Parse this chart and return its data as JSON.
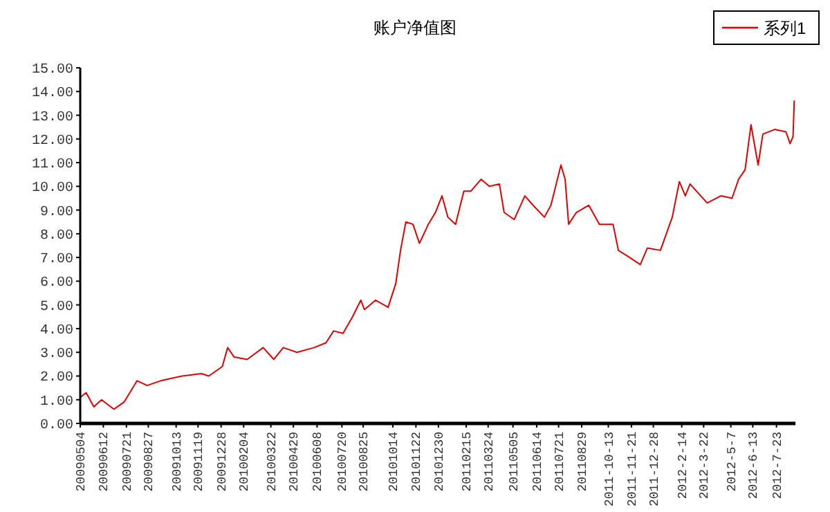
{
  "chart_data": {
    "type": "line",
    "title": "账户净值图",
    "legend": "top right",
    "grid": false,
    "marker": "none",
    "line_style": "solid",
    "xlim": [
      "2009-05-04",
      "2012-08-24"
    ],
    "xticks": [
      {
        "value": "2009-05-04",
        "label": "20090504"
      },
      {
        "value": "2009-06-12",
        "label": "20090612"
      },
      {
        "value": "2009-07-21",
        "label": "20090721"
      },
      {
        "value": "2009-08-27",
        "label": "20090827"
      },
      {
        "value": "2009-10-13",
        "label": "20091013"
      },
      {
        "value": "2009-11-19",
        "label": "20091119"
      },
      {
        "value": "2009-12-28",
        "label": "20091228"
      },
      {
        "value": "2010-02-04",
        "label": "20100204"
      },
      {
        "value": "2010-03-22",
        "label": "20100322"
      },
      {
        "value": "2010-04-29",
        "label": "20100429"
      },
      {
        "value": "2010-06-08",
        "label": "20100608"
      },
      {
        "value": "2010-07-20",
        "label": "20100720"
      },
      {
        "value": "2010-08-25",
        "label": "20100825"
      },
      {
        "value": "2010-10-14",
        "label": "20101014"
      },
      {
        "value": "2010-11-22",
        "label": "20101122"
      },
      {
        "value": "2010-12-30",
        "label": "20101230"
      },
      {
        "value": "2011-02-15",
        "label": "20110215"
      },
      {
        "value": "2011-03-24",
        "label": "20110324"
      },
      {
        "value": "2011-05-05",
        "label": "20110505"
      },
      {
        "value": "2011-06-14",
        "label": "20110614"
      },
      {
        "value": "2011-07-21",
        "label": "20110721"
      },
      {
        "value": "2011-08-29",
        "label": "20110829"
      },
      {
        "value": "2011-10-13",
        "label": "2011-10-13"
      },
      {
        "value": "2011-11-21",
        "label": "2011-11-21"
      },
      {
        "value": "2011-12-28",
        "label": "2011-12-28"
      },
      {
        "value": "2012-02-14",
        "label": "2012-2-14"
      },
      {
        "value": "2012-03-22",
        "label": "2012-3-22"
      },
      {
        "value": "2012-05-07",
        "label": "2012-5-7"
      },
      {
        "value": "2012-06-13",
        "label": "2012-6-13"
      },
      {
        "value": "2012-07-23",
        "label": "2012-7-23"
      }
    ],
    "ylim": [
      0,
      15
    ],
    "yticks": [
      {
        "value": 0,
        "label": "0.00"
      },
      {
        "value": 1,
        "label": "1.00"
      },
      {
        "value": 2,
        "label": "2.00"
      },
      {
        "value": 3,
        "label": "3.00"
      },
      {
        "value": 4,
        "label": "4.00"
      },
      {
        "value": 5,
        "label": "5.00"
      },
      {
        "value": 6,
        "label": "6.00"
      },
      {
        "value": 7,
        "label": "7.00"
      },
      {
        "value": 8,
        "label": "8.00"
      },
      {
        "value": 9,
        "label": "9.00"
      },
      {
        "value": 10,
        "label": "10.00"
      },
      {
        "value": 11,
        "label": "11.00"
      },
      {
        "value": 12,
        "label": "12.00"
      },
      {
        "value": 13,
        "label": "13.00"
      },
      {
        "value": 14,
        "label": "14.00"
      },
      {
        "value": 15,
        "label": "15.00"
      }
    ],
    "series": [
      {
        "name": "系列1",
        "color": "#e00000",
        "x": [
          "2009-05-04",
          "2009-05-14",
          "2009-05-27",
          "2009-06-09",
          "2009-06-30",
          "2009-07-17",
          "2009-08-08",
          "2009-08-25",
          "2009-09-17",
          "2009-10-23",
          "2009-11-25",
          "2009-12-07",
          "2009-12-30",
          "2010-01-08",
          "2010-01-19",
          "2010-02-10",
          "2010-03-09",
          "2010-03-27",
          "2010-04-12",
          "2010-05-05",
          "2010-06-03",
          "2010-06-23",
          "2010-07-06",
          "2010-07-22",
          "2010-08-07",
          "2010-08-21",
          "2010-08-27",
          "2010-09-15",
          "2010-10-06",
          "2010-10-19",
          "2010-10-27",
          "2010-11-05",
          "2010-11-17",
          "2010-11-28",
          "2010-12-13",
          "2010-12-25",
          "2011-01-05",
          "2011-01-15",
          "2011-01-28",
          "2011-02-11",
          "2011-02-23",
          "2011-03-12",
          "2011-03-26",
          "2011-04-12",
          "2011-04-20",
          "2011-05-07",
          "2011-05-25",
          "2011-06-08",
          "2011-06-27",
          "2011-07-08",
          "2011-07-25",
          "2011-08-01",
          "2011-08-07",
          "2011-08-20",
          "2011-09-10",
          "2011-09-28",
          "2011-10-21",
          "2011-10-30",
          "2011-11-18",
          "2011-12-06",
          "2011-12-18",
          "2012-01-09",
          "2012-01-29",
          "2012-02-10",
          "2012-02-20",
          "2012-02-28",
          "2012-03-28",
          "2012-04-20",
          "2012-05-09",
          "2012-05-20",
          "2012-05-31",
          "2012-06-10",
          "2012-06-22",
          "2012-06-30",
          "2012-07-20",
          "2012-08-08",
          "2012-08-15",
          "2012-08-20",
          "2012-08-22"
        ],
        "values": [
          1.1,
          1.3,
          0.7,
          1.0,
          0.6,
          0.9,
          1.8,
          1.6,
          1.8,
          2.0,
          2.1,
          2.0,
          2.4,
          3.2,
          2.8,
          2.7,
          3.2,
          2.7,
          3.2,
          3.0,
          3.2,
          3.4,
          3.9,
          3.8,
          4.5,
          5.2,
          4.8,
          5.2,
          4.9,
          5.9,
          7.3,
          8.5,
          8.4,
          7.6,
          8.4,
          8.9,
          9.6,
          8.7,
          8.4,
          9.8,
          9.8,
          10.3,
          10.0,
          10.1,
          8.9,
          8.6,
          9.6,
          9.2,
          8.7,
          9.2,
          10.9,
          10.3,
          8.4,
          8.9,
          9.2,
          8.4,
          8.4,
          7.3,
          7.0,
          6.7,
          7.4,
          7.3,
          8.7,
          10.2,
          9.6,
          10.1,
          9.3,
          9.6,
          9.5,
          10.3,
          10.7,
          12.6,
          10.9,
          12.2,
          12.4,
          12.3,
          11.8,
          12.1,
          13.6
        ]
      }
    ]
  }
}
